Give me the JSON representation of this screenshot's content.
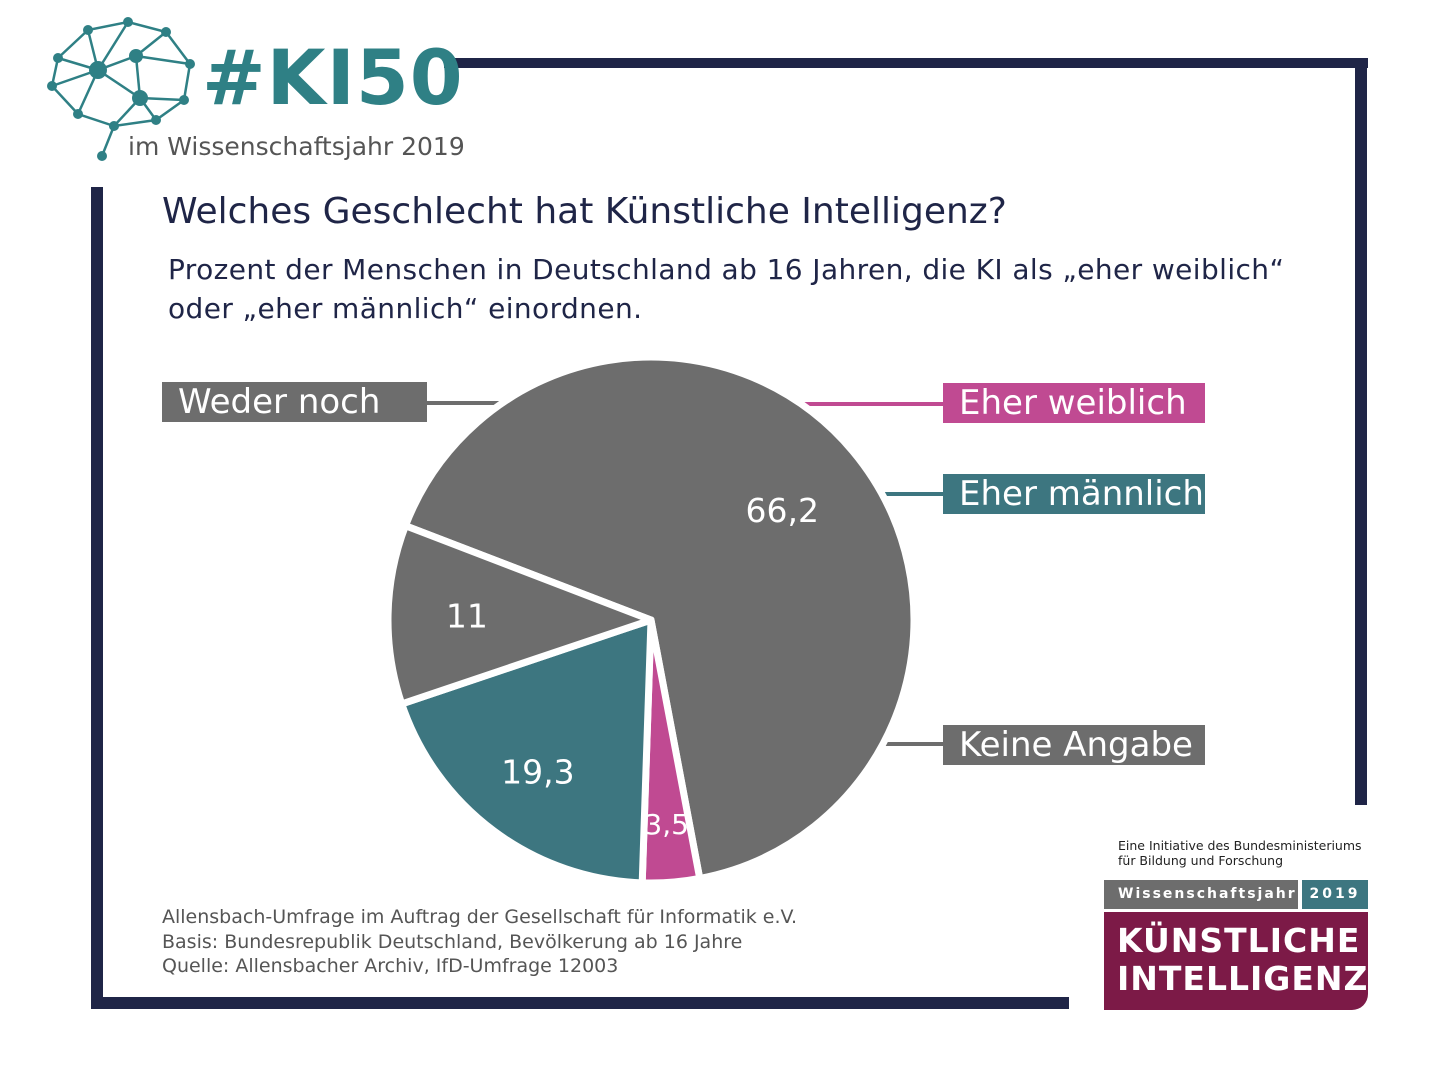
{
  "header": {
    "hashtag": "#KI50",
    "subtitle": "im Wissenschaftsjahr 2019",
    "logo_icon": "neural-brain-icon"
  },
  "colors": {
    "frame": "#1f2547",
    "teal": "#3d7680",
    "magenta": "#c04a92",
    "gray": "#6d6d6d",
    "wine": "#7c1a47"
  },
  "chart_data": {
    "type": "pie",
    "title": "Welches Geschlecht hat Künstliche Intelligenz?",
    "subtitle": "Prozent der Menschen in Deutschland ab 16 Jahren, die KI als „eher weiblich“ oder „eher männlich“ einordnen.",
    "slices": [
      {
        "label": "Weder noch",
        "value": 66.2,
        "display": "66,2",
        "color": "#6d6d6d"
      },
      {
        "label": "Eher weiblich",
        "value": 3.5,
        "display": "3,5",
        "color": "#c04a92"
      },
      {
        "label": "Eher männlich",
        "value": 19.3,
        "display": "19,3",
        "color": "#3d7680"
      },
      {
        "label": "Keine Angabe",
        "value": 11,
        "display": "11",
        "color": "#6d6d6d"
      }
    ],
    "legend_placement": "callouts-left-and-right"
  },
  "footer": {
    "source_lines": [
      "Allensbach-Umfrage im Auftrag der Gesellschaft für Informatik e.V.",
      "Basis: Bundesrepublik Deutschland, Bevölkerung ab 16 Jahre",
      "Quelle: Allensbacher Archiv, IfD-Umfrage 12003"
    ]
  },
  "branding": {
    "initiative_line1": "Eine Initiative des Bundesministeriums",
    "initiative_line2": "für Bildung und Forschung",
    "wissenschaftsjahr": "Wissenschaftsjahr",
    "year": "2019",
    "ki_line1": "KÜNSTLICHE",
    "ki_line2": "INTELLIGENZ"
  }
}
